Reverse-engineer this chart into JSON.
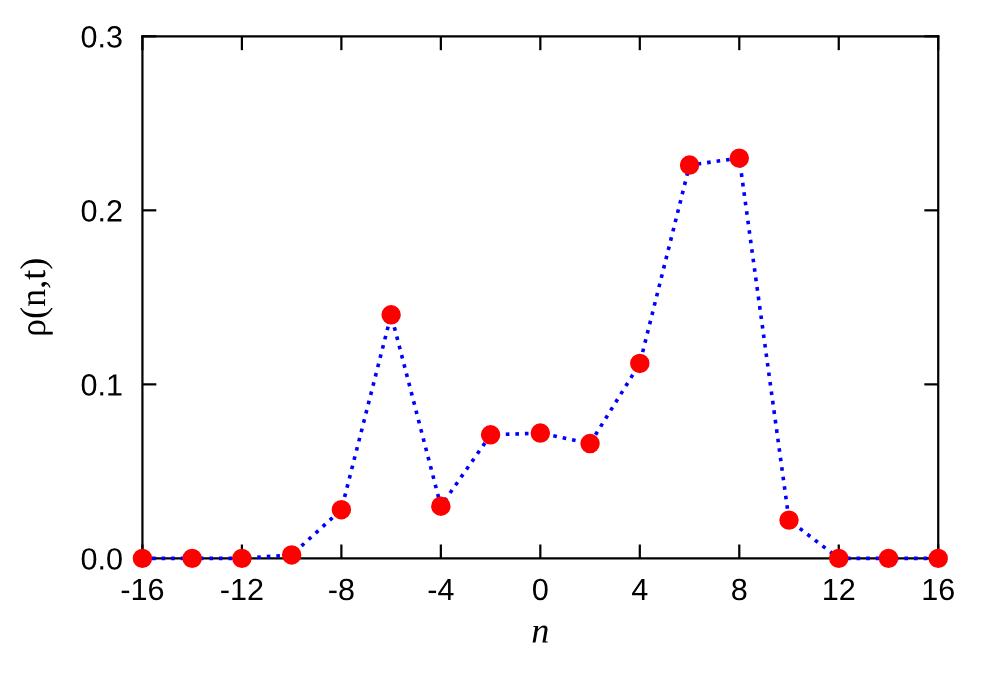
{
  "chart_data": {
    "type": "line",
    "xlabel": "n",
    "ylabel": "ρ(n,t)",
    "x": [
      -16,
      -14,
      -12,
      -10,
      -8,
      -6,
      -4,
      -2,
      0,
      2,
      4,
      6,
      8,
      10,
      12,
      14,
      16
    ],
    "series": [
      {
        "color": "#0000ff",
        "colors": [
          "#ff0000",
          "#ff0000",
          "#ff0000",
          "#ff0000",
          "#ff0000",
          "#ff0000",
          "#ff0000",
          "#ff0000",
          "#ff0000",
          "#ff0000",
          "#ff0000",
          "#ff0000",
          "#ff0000",
          "#ff0000",
          "#ff0000",
          "#ff0000",
          "#ff0000"
        ],
        "values": [
          0,
          0,
          0,
          0.002,
          0.028,
          0.14,
          0.03,
          0.071,
          0.072,
          0.066,
          0.112,
          0.226,
          0.23,
          0.022,
          0,
          0,
          0
        ]
      }
    ],
    "marker": "circle",
    "line_style": "dotted",
    "xlim": [
      -16,
      16
    ],
    "xticks": [
      -16,
      -12,
      -8,
      -4,
      0,
      4,
      8,
      12,
      16
    ],
    "ylim": [
      0,
      0.3
    ],
    "yticks": [
      {
        "value": 0,
        "label": "0.0"
      },
      {
        "value": 0.1,
        "label": "0.1"
      },
      {
        "value": 0.2,
        "label": "0.2"
      },
      {
        "value": 0.3,
        "label": "0.3"
      }
    ],
    "grid": false
  }
}
